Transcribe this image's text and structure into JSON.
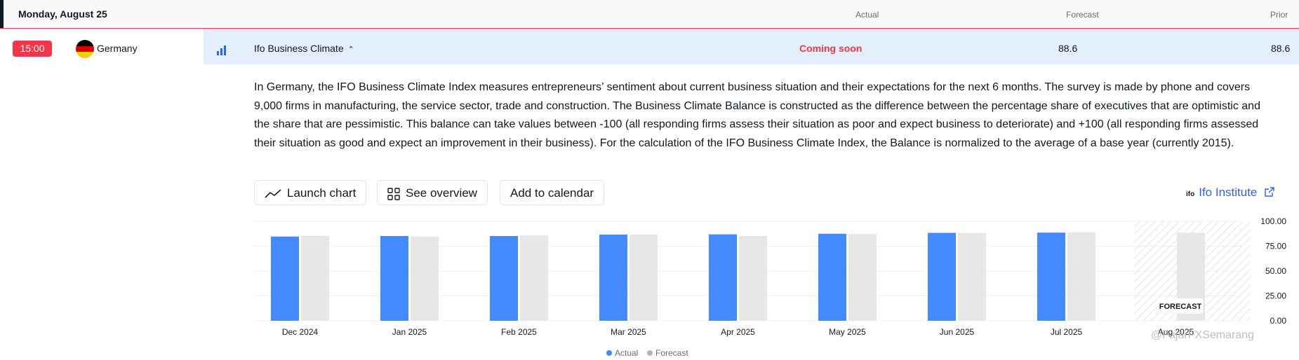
{
  "header": {
    "date": "Monday, August 25",
    "col_actual": "Actual",
    "col_forecast": "Forecast",
    "col_prior": "Prior"
  },
  "event": {
    "time": "15:00",
    "country": "Germany",
    "name": "Ifo Business Climate",
    "actual": "Coming soon",
    "forecast": "88.6",
    "prior": "88.6",
    "description": "In Germany, the IFO Business Climate Index measures entrepreneurs’ sentiment about current business situation and their expectations for the next 6 months. The survey is made by phone and covers 9,000 firms in manufacturing, the service sector, trade and construction. The Business Climate Balance is constructed as the difference between the percentage share of executives that are optimistic and the share that are pessimistic. This balance can take values between -100 (all responding firms assess their situation as poor and expect business to deteriorate) and +100 (all responding firms assessed their situation as good and expect an improvement in their business). For the calculation of the IFO Business Climate Index, the Balance is normalized to the average of a base year (currently 2015)."
  },
  "actions": {
    "launch_chart": "Launch chart",
    "see_overview": "See overview",
    "add_calendar": "Add to calendar",
    "source_logo": "ifo",
    "source": "Ifo Institute"
  },
  "colors": {
    "actual": "#448aff",
    "forecast": "#e7e7e7",
    "accent": "#f23645",
    "link": "#2962ff"
  },
  "chart_data": {
    "type": "bar",
    "categories": [
      "Dec 2024",
      "Jan 2025",
      "Feb 2025",
      "Mar 2025",
      "Apr 2025",
      "May 2025",
      "Jun 2025",
      "Jul 2025",
      "Aug 2025"
    ],
    "series": [
      {
        "name": "Actual",
        "values": [
          84.7,
          85.2,
          85.2,
          86.7,
          86.9,
          87.5,
          88.4,
          88.6,
          null
        ]
      },
      {
        "name": "Forecast",
        "values": [
          85.5,
          84.7,
          85.8,
          86.8,
          85.2,
          87.4,
          88.3,
          89.0,
          88.6
        ]
      }
    ],
    "y_ticks": [
      "100.00",
      "75.00",
      "50.00",
      "25.00",
      "0.00"
    ],
    "ylim": [
      0,
      100
    ],
    "forecast_label": "FORECAST",
    "legend": [
      "Actual",
      "Forecast"
    ],
    "legend_position": "bottom-center"
  },
  "watermark": "@FajarFXSemarang"
}
